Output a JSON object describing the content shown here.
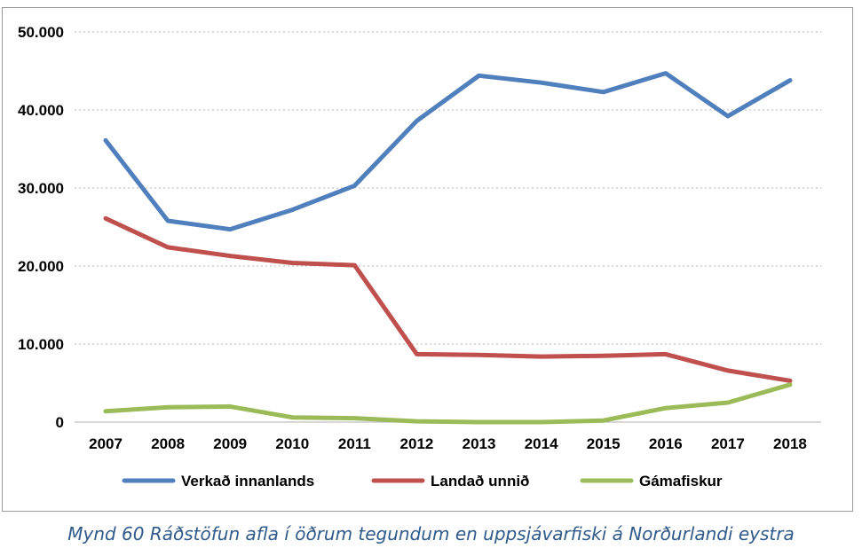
{
  "caption": "Mynd 60 Ráðstöfun afla í öðrum tegundum en uppsjávarfiski á Norðurlandi eystra",
  "chart_data": {
    "type": "line",
    "title": "",
    "xlabel": "",
    "ylabel": "",
    "x": [
      "2007",
      "2008",
      "2009",
      "2010",
      "2011",
      "2012",
      "2013",
      "2014",
      "2015",
      "2016",
      "2017",
      "2018"
    ],
    "ylim": [
      0,
      50000
    ],
    "yticks": [
      0,
      10000,
      20000,
      30000,
      40000,
      50000
    ],
    "ytick_labels": [
      "0",
      "10.000",
      "20.000",
      "30.000",
      "40.000",
      "50.000"
    ],
    "grid": "horizontal dotted",
    "legend_position": "bottom",
    "series": [
      {
        "name": "Verkað innanlands",
        "color": "#4f7fbd",
        "values": [
          36100,
          25800,
          24700,
          27200,
          30300,
          38600,
          44400,
          43500,
          42300,
          44700,
          39200,
          43800
        ]
      },
      {
        "name": "Landað unnið",
        "color": "#c0504d",
        "values": [
          26100,
          22400,
          21300,
          20400,
          20100,
          8700,
          8600,
          8400,
          8500,
          8700,
          6600,
          5300
        ]
      },
      {
        "name": "Gámafiskur",
        "color": "#9bbb59",
        "values": [
          1400,
          1900,
          2000,
          600,
          500,
          100,
          0,
          0,
          200,
          1800,
          2500,
          4800
        ]
      }
    ]
  }
}
